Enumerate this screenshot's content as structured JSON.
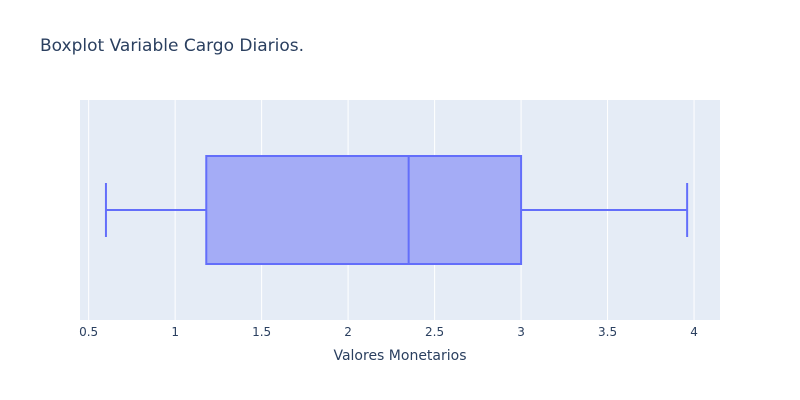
{
  "chart_data": {
    "type": "box",
    "title": "Boxplot Variable Cargo Diarios.",
    "xlabel": "Valores Monetarios",
    "ylabel": "",
    "orientation": "horizontal",
    "xlim": [
      0.45,
      4.15
    ],
    "xticks": [
      0.5,
      1,
      1.5,
      2,
      2.5,
      3,
      3.5,
      4
    ],
    "xtick_labels": [
      "0.5",
      "1",
      "1.5",
      "2",
      "2.5",
      "3",
      "3.5",
      "4"
    ],
    "grid": true,
    "series": [
      {
        "min": 0.6,
        "q1": 1.18,
        "median": 2.35,
        "q3": 3.0,
        "max": 3.96
      }
    ]
  },
  "colors": {
    "plot_background": "#e5ecf6",
    "grid": "#ffffff",
    "box_line": "#636efa",
    "box_fill": "#a4acf6",
    "text": "#2a3f5f"
  }
}
